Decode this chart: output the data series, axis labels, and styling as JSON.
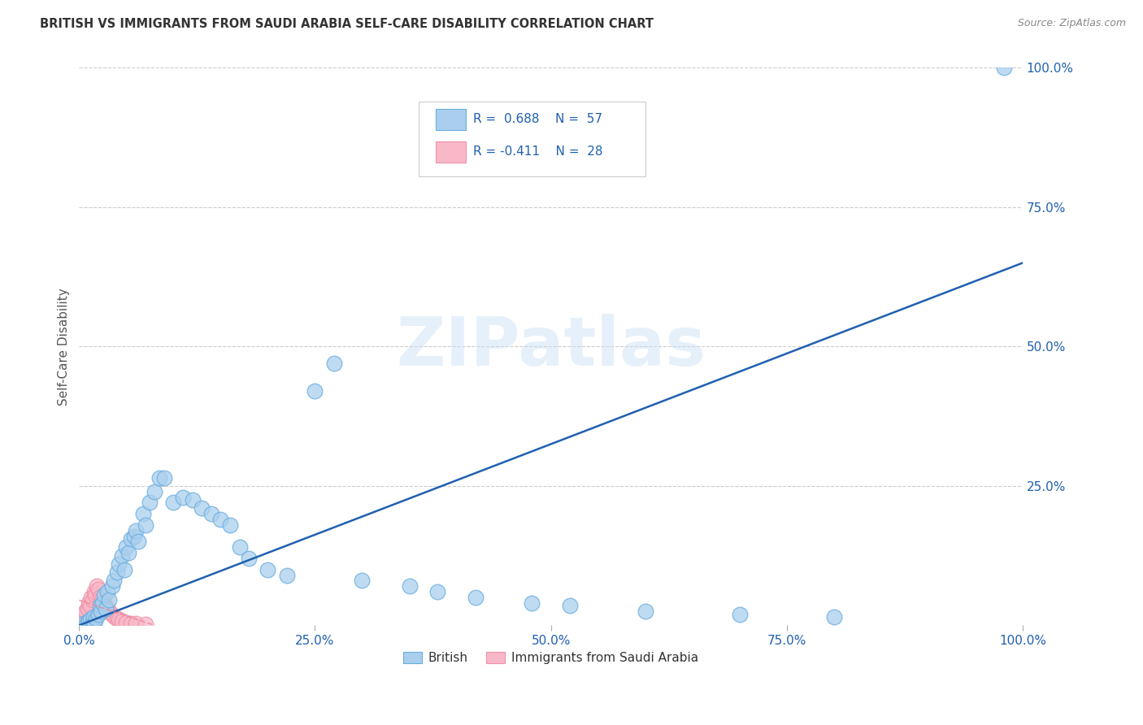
{
  "title": "BRITISH VS IMMIGRANTS FROM SAUDI ARABIA SELF-CARE DISABILITY CORRELATION CHART",
  "source": "Source: ZipAtlas.com",
  "ylabel": "Self-Care Disability",
  "watermark": "ZIPatlas",
  "british_R": 0.688,
  "british_N": 57,
  "saudi_R": -0.411,
  "saudi_N": 28,
  "british_color": "#aacfee",
  "british_edge": "#6aaede",
  "saudi_color": "#f8b8c8",
  "saudi_edge": "#f090a8",
  "line_color": "#2060b0",
  "pink_line_color": "#e88090",
  "british_x": [
    0.5,
    0.8,
    1.0,
    1.2,
    1.4,
    1.5,
    1.6,
    1.8,
    2.0,
    2.2,
    2.3,
    2.5,
    2.6,
    2.8,
    3.0,
    3.2,
    3.5,
    3.7,
    4.0,
    4.2,
    4.5,
    4.8,
    5.0,
    5.2,
    5.5,
    5.8,
    6.0,
    6.3,
    6.8,
    7.0,
    7.5,
    8.0,
    8.5,
    9.0,
    10.0,
    11.0,
    12.0,
    13.0,
    14.0,
    15.0,
    16.0,
    17.0,
    18.0,
    20.0,
    22.0,
    25.0,
    27.0,
    30.0,
    35.0,
    38.0,
    42.0,
    48.0,
    52.0,
    60.0,
    70.0,
    80.0,
    98.0
  ],
  "british_y": [
    0.3,
    0.5,
    0.8,
    1.0,
    0.6,
    1.5,
    0.4,
    1.2,
    2.0,
    3.5,
    2.5,
    4.0,
    5.5,
    3.0,
    6.0,
    4.5,
    7.0,
    8.0,
    9.5,
    11.0,
    12.5,
    10.0,
    14.0,
    13.0,
    15.5,
    16.0,
    17.0,
    15.0,
    20.0,
    18.0,
    22.0,
    24.0,
    26.5,
    26.5,
    22.0,
    23.0,
    22.5,
    21.0,
    20.0,
    19.0,
    18.0,
    14.0,
    12.0,
    10.0,
    9.0,
    42.0,
    47.0,
    8.0,
    7.0,
    6.0,
    5.0,
    4.0,
    3.5,
    2.5,
    2.0,
    1.5,
    100.0
  ],
  "saudi_x": [
    0.2,
    0.4,
    0.5,
    0.7,
    0.9,
    1.0,
    1.2,
    1.3,
    1.4,
    1.6,
    1.7,
    1.9,
    2.0,
    2.2,
    2.4,
    2.6,
    2.8,
    3.0,
    3.2,
    3.5,
    3.8,
    4.0,
    4.2,
    4.5,
    5.0,
    5.5,
    6.0,
    7.0
  ],
  "saudi_y": [
    1.0,
    1.5,
    2.0,
    2.5,
    3.0,
    4.0,
    3.5,
    5.0,
    4.5,
    6.0,
    5.5,
    7.0,
    6.5,
    5.0,
    4.5,
    4.0,
    3.5,
    3.0,
    2.5,
    2.0,
    1.5,
    1.2,
    1.0,
    0.8,
    0.5,
    0.4,
    0.3,
    0.2
  ],
  "brit_line_x0": 0.0,
  "brit_line_y0": 0.0,
  "brit_line_x1": 100.0,
  "brit_line_y1": 65.0,
  "xticks": [
    0.0,
    25.0,
    50.0,
    75.0,
    100.0
  ],
  "xtick_labels": [
    "0.0%",
    "25.0%",
    "50.0%",
    "75.0%",
    "100.0%"
  ],
  "yticks_right": [
    25.0,
    50.0,
    75.0,
    100.0
  ],
  "ytick_labels_right": [
    "25.0%",
    "50.0%",
    "75.0%",
    "100.0%"
  ],
  "xlim": [
    0.0,
    100.0
  ],
  "ylim": [
    0.0,
    100.0
  ],
  "background_color": "#ffffff",
  "grid_color": "#cccccc",
  "title_color": "#333333",
  "tick_color": "#2060b0",
  "source_color": "#888888"
}
